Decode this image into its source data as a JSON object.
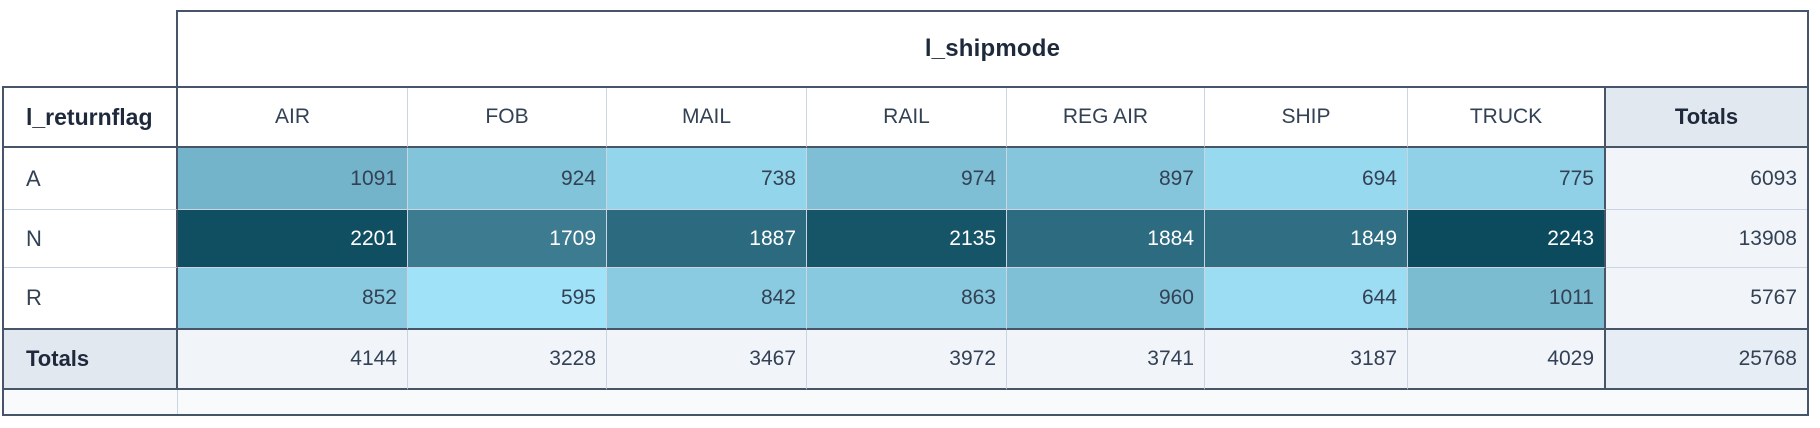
{
  "chart_data": {
    "type": "heatmap",
    "title": "l_shipmode",
    "row_dimension": "l_returnflag",
    "column_dimension": "l_shipmode",
    "totals_label": "Totals",
    "columns": [
      "AIR",
      "FOB",
      "MAIL",
      "RAIL",
      "REG AIR",
      "SHIP",
      "TRUCK"
    ],
    "rows": [
      "A",
      "N",
      "R"
    ],
    "values": [
      [
        1091,
        924,
        738,
        974,
        897,
        694,
        775
      ],
      [
        2201,
        1709,
        1887,
        2135,
        1884,
        1849,
        2243
      ],
      [
        852,
        595,
        842,
        863,
        960,
        644,
        1011
      ]
    ],
    "row_totals": [
      6093,
      13908,
      5767
    ],
    "column_totals": [
      4144,
      3228,
      3467,
      3972,
      3741,
      3187,
      4029
    ],
    "grand_total": 25768,
    "value_range": [
      595,
      2243
    ],
    "legend_position": "none",
    "grid": true
  },
  "colors": {
    "border_dark": "#475569",
    "border_light": "#cbd5e1",
    "text": "#334155",
    "text_bold": "#1e293b",
    "text_on_dark": "#ffffff",
    "heat_min": "#a0e2f8",
    "heat_max": "#0c4a5e",
    "totals_header_bg": "#e2e8f0",
    "totals_cell_bg": "#f1f5f9",
    "grand_total_bg": "#e7edf4",
    "footer_bg": "#f8fafc",
    "table_bg": "#ffffff"
  }
}
